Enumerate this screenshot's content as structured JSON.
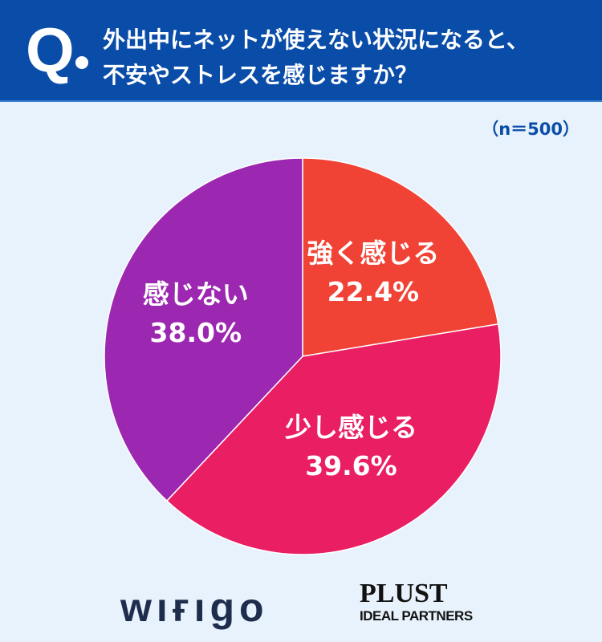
{
  "header": {
    "q_mark": "Q",
    "title_line1": "外出中にネットが使えない状況になると、",
    "title_line2": "不安やストレスを感じますか？"
  },
  "sample_size": "（n＝500）",
  "chart_data": {
    "type": "pie",
    "start": "top",
    "direction": "clockwise",
    "slices": [
      {
        "label": "強く感じる",
        "value": 22.4,
        "value_label": "22.4%",
        "color": "#f04336"
      },
      {
        "label": "少し感じる",
        "value": 39.6,
        "value_label": "39.6%",
        "color": "#e91e63"
      },
      {
        "label": "感じない",
        "value": 38.0,
        "value_label": "38.0%",
        "color": "#9c27b0"
      }
    ]
  },
  "logos": {
    "wifigo": "wifigo",
    "plust": "PLUST",
    "plust_sub": "IDEAL PARTNERS"
  }
}
